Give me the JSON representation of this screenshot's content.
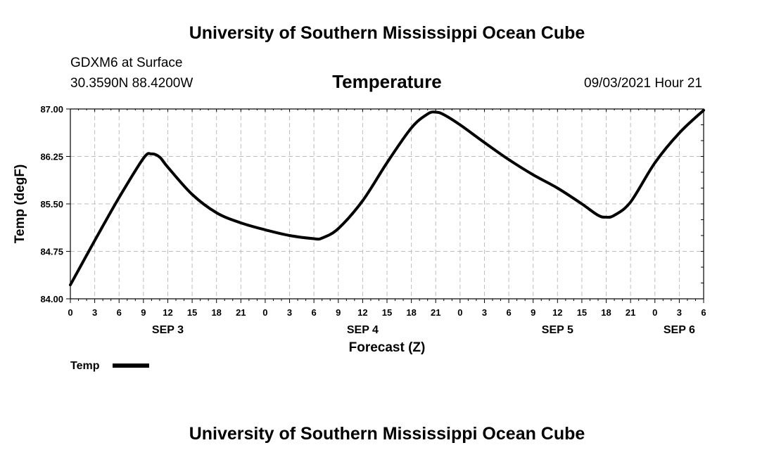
{
  "header": {
    "title": "University of Southern Mississippi Ocean Cube",
    "station": "GDXM6 at Surface",
    "coords": "30.3590N  88.4200W",
    "datetime": "09/03/2021 Hour 21"
  },
  "footer": {
    "title": "University of Southern Mississippi Ocean Cube"
  },
  "chart_data": {
    "type": "line",
    "title": "Temperature",
    "xlabel": "Forecast (Z)",
    "ylabel": "Temp (degF)",
    "ylim": [
      84.0,
      87.0
    ],
    "y_ticks": [
      "84.00",
      "84.75",
      "85.50",
      "86.25",
      "87.00"
    ],
    "x_range_hours": [
      0,
      78
    ],
    "x_tick_labels": [
      "0",
      "3",
      "6",
      "9",
      "12",
      "15",
      "18",
      "21",
      "0",
      "3",
      "6",
      "9",
      "12",
      "15",
      "18",
      "21",
      "0",
      "3",
      "6",
      "9",
      "12",
      "15",
      "18",
      "21",
      "0",
      "3",
      "6"
    ],
    "day_labels": [
      {
        "label": "SEP 3",
        "hour": 12
      },
      {
        "label": "SEP 4",
        "hour": 36
      },
      {
        "label": "SEP 5",
        "hour": 60
      },
      {
        "label": "SEP 6",
        "hour": 75
      }
    ],
    "grid": true,
    "legend": "bottom-left",
    "series": [
      {
        "name": "Temp",
        "x": [
          0,
          3,
          6,
          9,
          10,
          11,
          12,
          15,
          18,
          21,
          24,
          27,
          30,
          31,
          33,
          36,
          39,
          42,
          44,
          45,
          46,
          48,
          51,
          54,
          57,
          60,
          63,
          65,
          66,
          67,
          69,
          72,
          75,
          78
        ],
        "values": [
          84.22,
          84.92,
          85.6,
          86.22,
          86.29,
          86.24,
          86.08,
          85.65,
          85.36,
          85.2,
          85.09,
          85.0,
          84.95,
          84.96,
          85.11,
          85.55,
          86.15,
          86.7,
          86.92,
          86.95,
          86.91,
          86.75,
          86.47,
          86.2,
          85.96,
          85.75,
          85.5,
          85.32,
          85.29,
          85.32,
          85.53,
          86.15,
          86.62,
          86.98
        ]
      }
    ]
  }
}
